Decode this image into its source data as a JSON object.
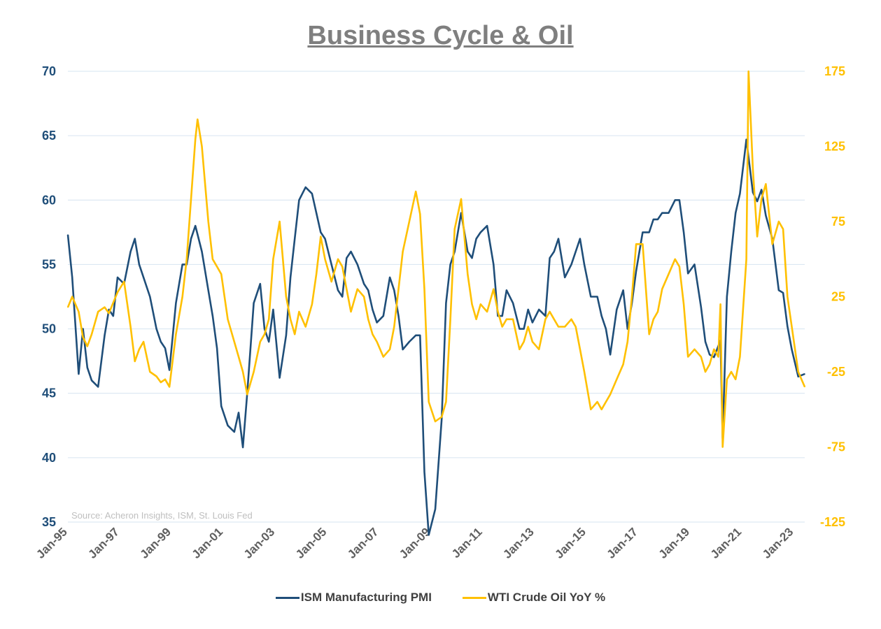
{
  "colors": {
    "pmi": "#1f4e79",
    "oil": "#ffc000",
    "grid": "#d6e4f0",
    "axis_text_left": "#1f4e79",
    "axis_text_right": "#ffc000"
  },
  "chart_data": {
    "type": "line",
    "title": "Business Cycle & Oil",
    "source_note": "Source: Acheron Insights, ISM, St. Louis Fed",
    "x_tick_labels": [
      "Jan-95",
      "Jan-97",
      "Jan-99",
      "Jan-01",
      "Jan-03",
      "Jan-05",
      "Jan-07",
      "Jan-09",
      "Jan-11",
      "Jan-13",
      "Jan-15",
      "Jan-17",
      "Jan-19",
      "Jan-21",
      "Jan-23"
    ],
    "x_range": [
      "Jan-95",
      "Jun-23"
    ],
    "left_axis": {
      "ylim": [
        35,
        70
      ],
      "ticks": [
        "35",
        "40",
        "45",
        "50",
        "55",
        "60",
        "65",
        "70"
      ]
    },
    "right_axis": {
      "ylim": [
        -125,
        175
      ],
      "ticks": [
        "-125",
        "-75",
        "-25",
        "25",
        "75",
        "125",
        "175"
      ]
    },
    "grid": true,
    "legend_position": "bottom",
    "series": [
      {
        "name": "ISM Manufacturing PMI",
        "axis": "left",
        "points": [
          [
            "Jan-95",
            57.3
          ],
          [
            "Mar-95",
            54
          ],
          [
            "Jun-95",
            46.5
          ],
          [
            "Aug-95",
            50
          ],
          [
            "Oct-95",
            47
          ],
          [
            "Dec-95",
            46
          ],
          [
            "Mar-96",
            45.5
          ],
          [
            "Jun-96",
            49.5
          ],
          [
            "Aug-96",
            51.5
          ],
          [
            "Oct-96",
            51
          ],
          [
            "Dec-96",
            54
          ],
          [
            "Mar-97",
            53.5
          ],
          [
            "Jun-97",
            56
          ],
          [
            "Aug-97",
            57
          ],
          [
            "Oct-97",
            55
          ],
          [
            "Dec-97",
            54
          ],
          [
            "Mar-98",
            52.5
          ],
          [
            "Jun-98",
            50
          ],
          [
            "Aug-98",
            49
          ],
          [
            "Oct-98",
            48.5
          ],
          [
            "Dec-98",
            46.8
          ],
          [
            "Mar-99",
            52
          ],
          [
            "Jun-99",
            55
          ],
          [
            "Aug-99",
            55
          ],
          [
            "Oct-99",
            57
          ],
          [
            "Dec-99",
            58
          ],
          [
            "Mar-00",
            56
          ],
          [
            "Jun-00",
            53
          ],
          [
            "Aug-00",
            51
          ],
          [
            "Oct-00",
            48.5
          ],
          [
            "Dec-00",
            44
          ],
          [
            "Mar-01",
            42.5
          ],
          [
            "Jun-01",
            42
          ],
          [
            "Aug-01",
            43.5
          ],
          [
            "Oct-01",
            40.8
          ],
          [
            "Dec-01",
            45
          ],
          [
            "Mar-02",
            52
          ],
          [
            "Jun-02",
            53.5
          ],
          [
            "Aug-02",
            50
          ],
          [
            "Oct-02",
            49
          ],
          [
            "Dec-02",
            51.5
          ],
          [
            "Mar-03",
            46.2
          ],
          [
            "Jun-03",
            49.5
          ],
          [
            "Aug-03",
            54
          ],
          [
            "Oct-03",
            57
          ],
          [
            "Dec-03",
            60
          ],
          [
            "Mar-04",
            61
          ],
          [
            "Jun-04",
            60.5
          ],
          [
            "Aug-04",
            59
          ],
          [
            "Oct-04",
            57.5
          ],
          [
            "Dec-04",
            57
          ],
          [
            "Mar-05",
            55
          ],
          [
            "Jun-05",
            53
          ],
          [
            "Aug-05",
            52.5
          ],
          [
            "Oct-05",
            55.5
          ],
          [
            "Dec-05",
            56
          ],
          [
            "Mar-06",
            55
          ],
          [
            "Jun-06",
            53.5
          ],
          [
            "Aug-06",
            53
          ],
          [
            "Oct-06",
            51.5
          ],
          [
            "Dec-06",
            50.5
          ],
          [
            "Mar-07",
            51
          ],
          [
            "Jun-07",
            54
          ],
          [
            "Aug-07",
            53
          ],
          [
            "Oct-07",
            51
          ],
          [
            "Dec-07",
            48.4
          ],
          [
            "Mar-08",
            49
          ],
          [
            "Jun-08",
            49.5
          ],
          [
            "Aug-08",
            49.5
          ],
          [
            "Oct-08",
            38.9
          ],
          [
            "Dec-08",
            34
          ],
          [
            "Mar-09",
            36
          ],
          [
            "Jun-09",
            43
          ],
          [
            "Aug-09",
            52
          ],
          [
            "Oct-09",
            55
          ],
          [
            "Dec-09",
            56
          ],
          [
            "Mar-10",
            59
          ],
          [
            "Jun-10",
            56
          ],
          [
            "Aug-10",
            55.5
          ],
          [
            "Oct-10",
            57
          ],
          [
            "Dec-10",
            57.5
          ],
          [
            "Mar-11",
            58
          ],
          [
            "Jun-11",
            55
          ],
          [
            "Aug-11",
            51
          ],
          [
            "Oct-11",
            51
          ],
          [
            "Dec-11",
            53
          ],
          [
            "Mar-12",
            52
          ],
          [
            "Jun-12",
            50
          ],
          [
            "Aug-12",
            50
          ],
          [
            "Oct-12",
            51.5
          ],
          [
            "Dec-12",
            50.5
          ],
          [
            "Mar-13",
            51.5
          ],
          [
            "Jun-13",
            51
          ],
          [
            "Aug-13",
            55.5
          ],
          [
            "Oct-13",
            56
          ],
          [
            "Dec-13",
            57
          ],
          [
            "Mar-14",
            54
          ],
          [
            "Jun-14",
            55
          ],
          [
            "Aug-14",
            56
          ],
          [
            "Oct-14",
            57
          ],
          [
            "Dec-14",
            55
          ],
          [
            "Mar-15",
            52.5
          ],
          [
            "Jun-15",
            52.5
          ],
          [
            "Aug-15",
            51
          ],
          [
            "Oct-15",
            50
          ],
          [
            "Dec-15",
            48
          ],
          [
            "Mar-16",
            51.5
          ],
          [
            "Jun-16",
            53
          ],
          [
            "Aug-16",
            50
          ],
          [
            "Oct-16",
            52
          ],
          [
            "Dec-16",
            54.5
          ],
          [
            "Mar-17",
            57.5
          ],
          [
            "Jun-17",
            57.5
          ],
          [
            "Aug-17",
            58.5
          ],
          [
            "Oct-17",
            58.5
          ],
          [
            "Dec-17",
            59
          ],
          [
            "Mar-18",
            59
          ],
          [
            "Jun-18",
            60
          ],
          [
            "Aug-18",
            60
          ],
          [
            "Oct-18",
            57.5
          ],
          [
            "Dec-18",
            54.3
          ],
          [
            "Mar-19",
            55
          ],
          [
            "Jun-19",
            51.7
          ],
          [
            "Aug-19",
            49
          ],
          [
            "Oct-19",
            48
          ],
          [
            "Dec-19",
            47.8
          ],
          [
            "Mar-20",
            49.1
          ],
          [
            "Apr-20",
            41.5
          ],
          [
            "Jun-20",
            52.5
          ],
          [
            "Aug-20",
            56
          ],
          [
            "Oct-20",
            59
          ],
          [
            "Dec-20",
            60.5
          ],
          [
            "Mar-21",
            64.7
          ],
          [
            "Jun-21",
            60.6
          ],
          [
            "Aug-21",
            59.9
          ],
          [
            "Oct-21",
            60.8
          ],
          [
            "Dec-21",
            58.8
          ],
          [
            "Mar-22",
            57
          ],
          [
            "Jun-22",
            53
          ],
          [
            "Aug-22",
            52.8
          ],
          [
            "Oct-22",
            50.2
          ],
          [
            "Dec-22",
            48.4
          ],
          [
            "Mar-23",
            46.3
          ],
          [
            "Jun-23",
            46.5
          ]
        ]
      },
      {
        "name": "WTI Crude Oil YoY %",
        "axis": "right",
        "points": [
          [
            "Jan-95",
            18
          ],
          [
            "Mar-95",
            25
          ],
          [
            "Jun-95",
            15
          ],
          [
            "Aug-95",
            -2
          ],
          [
            "Oct-95",
            -8
          ],
          [
            "Dec-95",
            0
          ],
          [
            "Mar-96",
            15
          ],
          [
            "Jun-96",
            18
          ],
          [
            "Aug-96",
            14
          ],
          [
            "Oct-96",
            21
          ],
          [
            "Dec-96",
            28
          ],
          [
            "Mar-97",
            35
          ],
          [
            "Jun-97",
            5
          ],
          [
            "Aug-97",
            -18
          ],
          [
            "Oct-97",
            -10
          ],
          [
            "Dec-97",
            -5
          ],
          [
            "Mar-98",
            -25
          ],
          [
            "Jun-98",
            -28
          ],
          [
            "Aug-98",
            -32
          ],
          [
            "Oct-98",
            -30
          ],
          [
            "Dec-98",
            -35
          ],
          [
            "Mar-99",
            0
          ],
          [
            "Jun-99",
            25
          ],
          [
            "Aug-99",
            50
          ],
          [
            "Oct-99",
            90
          ],
          [
            "Dec-99",
            130
          ],
          [
            "Jan-00",
            143
          ],
          [
            "Mar-00",
            125
          ],
          [
            "Jun-00",
            75
          ],
          [
            "Aug-00",
            50
          ],
          [
            "Oct-00",
            45
          ],
          [
            "Dec-00",
            40
          ],
          [
            "Mar-01",
            10
          ],
          [
            "Jun-01",
            -5
          ],
          [
            "Aug-01",
            -15
          ],
          [
            "Oct-01",
            -25
          ],
          [
            "Dec-01",
            -40
          ],
          [
            "Mar-02",
            -25
          ],
          [
            "Jun-02",
            -5
          ],
          [
            "Aug-02",
            0
          ],
          [
            "Oct-02",
            10
          ],
          [
            "Dec-02",
            50
          ],
          [
            "Mar-03",
            75
          ],
          [
            "Jun-03",
            25
          ],
          [
            "Aug-03",
            10
          ],
          [
            "Oct-03",
            0
          ],
          [
            "Dec-03",
            15
          ],
          [
            "Mar-04",
            5
          ],
          [
            "Jun-04",
            20
          ],
          [
            "Aug-04",
            40
          ],
          [
            "Oct-04",
            65
          ],
          [
            "Dec-04",
            50
          ],
          [
            "Mar-05",
            35
          ],
          [
            "Jun-05",
            50
          ],
          [
            "Aug-05",
            45
          ],
          [
            "Oct-05",
            30
          ],
          [
            "Dec-05",
            15
          ],
          [
            "Mar-06",
            30
          ],
          [
            "Jun-06",
            25
          ],
          [
            "Aug-06",
            10
          ],
          [
            "Oct-06",
            0
          ],
          [
            "Dec-06",
            -5
          ],
          [
            "Mar-07",
            -15
          ],
          [
            "Jun-07",
            -10
          ],
          [
            "Aug-07",
            5
          ],
          [
            "Oct-07",
            30
          ],
          [
            "Dec-07",
            55
          ],
          [
            "Mar-08",
            75
          ],
          [
            "Jun-08",
            95
          ],
          [
            "Aug-08",
            80
          ],
          [
            "Oct-08",
            30
          ],
          [
            "Dec-08",
            -45
          ],
          [
            "Mar-09",
            -58
          ],
          [
            "Jun-09",
            -55
          ],
          [
            "Aug-09",
            -45
          ],
          [
            "Oct-09",
            10
          ],
          [
            "Dec-09",
            70
          ],
          [
            "Mar-10",
            90
          ],
          [
            "Jun-10",
            40
          ],
          [
            "Aug-10",
            20
          ],
          [
            "Oct-10",
            10
          ],
          [
            "Dec-10",
            20
          ],
          [
            "Mar-11",
            15
          ],
          [
            "Jun-11",
            30
          ],
          [
            "Aug-11",
            15
          ],
          [
            "Oct-11",
            5
          ],
          [
            "Dec-11",
            10
          ],
          [
            "Mar-12",
            10
          ],
          [
            "Jun-12",
            -10
          ],
          [
            "Aug-12",
            -5
          ],
          [
            "Oct-12",
            5
          ],
          [
            "Dec-12",
            -5
          ],
          [
            "Mar-13",
            -10
          ],
          [
            "Jun-13",
            10
          ],
          [
            "Aug-13",
            15
          ],
          [
            "Oct-13",
            10
          ],
          [
            "Dec-13",
            5
          ],
          [
            "Mar-14",
            5
          ],
          [
            "Jun-14",
            10
          ],
          [
            "Aug-14",
            5
          ],
          [
            "Oct-14",
            -10
          ],
          [
            "Dec-14",
            -25
          ],
          [
            "Mar-15",
            -50
          ],
          [
            "Jun-15",
            -45
          ],
          [
            "Aug-15",
            -50
          ],
          [
            "Oct-15",
            -45
          ],
          [
            "Dec-15",
            -40
          ],
          [
            "Mar-16",
            -30
          ],
          [
            "Jun-16",
            -20
          ],
          [
            "Aug-16",
            -5
          ],
          [
            "Oct-16",
            25
          ],
          [
            "Dec-16",
            60
          ],
          [
            "Mar-17",
            60
          ],
          [
            "Jun-17",
            0
          ],
          [
            "Aug-17",
            10
          ],
          [
            "Oct-17",
            15
          ],
          [
            "Dec-17",
            30
          ],
          [
            "Mar-18",
            40
          ],
          [
            "Jun-18",
            50
          ],
          [
            "Aug-18",
            45
          ],
          [
            "Oct-18",
            20
          ],
          [
            "Dec-18",
            -15
          ],
          [
            "Mar-19",
            -10
          ],
          [
            "Jun-19",
            -15
          ],
          [
            "Aug-19",
            -25
          ],
          [
            "Oct-19",
            -20
          ],
          [
            "Dec-19",
            -10
          ],
          [
            "Feb-20",
            -15
          ],
          [
            "Mar-20",
            20
          ],
          [
            "Apr-20",
            -75
          ],
          [
            "Jun-20",
            -30
          ],
          [
            "Aug-20",
            -25
          ],
          [
            "Oct-20",
            -30
          ],
          [
            "Dec-20",
            -15
          ],
          [
            "Mar-21",
            50
          ],
          [
            "Apr-21",
            175
          ],
          [
            "Jun-21",
            110
          ],
          [
            "Aug-21",
            65
          ],
          [
            "Oct-21",
            90
          ],
          [
            "Dec-21",
            100
          ],
          [
            "Mar-22",
            60
          ],
          [
            "Jun-22",
            75
          ],
          [
            "Aug-22",
            70
          ],
          [
            "Oct-22",
            25
          ],
          [
            "Dec-22",
            5
          ],
          [
            "Mar-23",
            -25
          ],
          [
            "Jun-23",
            -35
          ]
        ]
      }
    ]
  }
}
